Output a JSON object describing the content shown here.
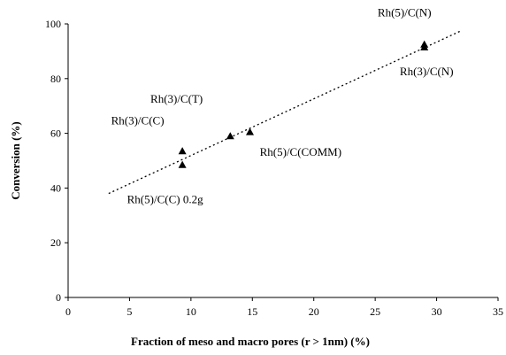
{
  "chart_data": {
    "type": "scatter",
    "title": "",
    "xlabel": "Fraction of meso and macro pores (r > 1nm) (%)",
    "ylabel": "Conversion (%)",
    "xlim": [
      0,
      35
    ],
    "ylim": [
      0,
      100
    ],
    "x_ticks": [
      "0",
      "5",
      "10",
      "15",
      "20",
      "25",
      "30",
      "35"
    ],
    "y_ticks": [
      "0",
      "20",
      "40",
      "60",
      "80",
      "100"
    ],
    "grid": false,
    "marker": "triangle",
    "points": [
      {
        "x": 9.3,
        "y": 53.5
      },
      {
        "x": 9.3,
        "y": 48.5
      },
      {
        "x": 13.2,
        "y": 59
      },
      {
        "x": 14.8,
        "y": 60.5
      },
      {
        "x": 29.0,
        "y": 92.5
      },
      {
        "x": 29.0,
        "y": 91.5
      }
    ],
    "trendline": {
      "style": "dotted",
      "x": [
        3.3,
        32.0
      ],
      "y": [
        38,
        97.5
      ]
    },
    "annotations": [
      {
        "text": "Rh(3)/C(C)",
        "x": 3.5,
        "y": 63.2
      },
      {
        "text": "Rh(3)/C(T)",
        "x": 6.7,
        "y": 71.2
      },
      {
        "text": "Rh(5)/C(COMM)",
        "x": 15.6,
        "y": 51.8
      },
      {
        "text": "Rh(5)/C(C) 0.2g",
        "x": 4.8,
        "y": 34.4
      },
      {
        "text": "Rh(5)/C(N)",
        "x": 25.2,
        "y": 102.8
      },
      {
        "text": "Rh(3)/C(N)",
        "x": 27.0,
        "y": 81.2
      }
    ]
  }
}
